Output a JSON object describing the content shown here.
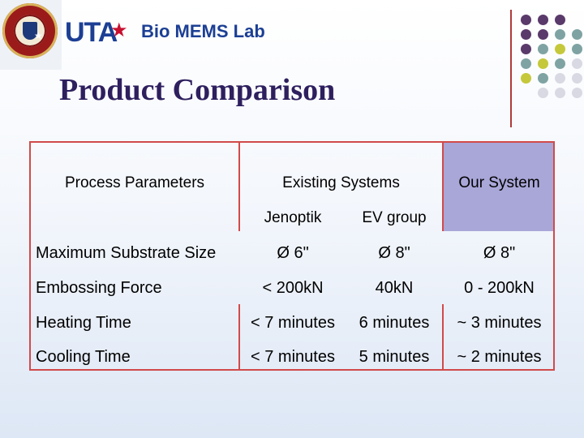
{
  "header": {
    "logo_text": "UTA",
    "lab_name": "Bio MEMS Lab",
    "title": "Product Comparison"
  },
  "colors": {
    "accent_line": "#b03a3a",
    "table_border": "#d24a4a",
    "our_system_bg": "#a9a6d8",
    "dot_purple": "#5a3a6a",
    "dot_teal": "#7fa3a3",
    "dot_olive": "#c5c83a",
    "dot_light": "#d9d9e3",
    "title_color": "#2e1f5e"
  },
  "table": {
    "col_process": "Process Parameters",
    "col_existing": "Existing Systems",
    "col_ours": "Our System",
    "sub_jenoptik": "Jenoptik",
    "sub_ev": "EV group",
    "rows": [
      {
        "param": "Maximum Substrate Size",
        "jenoptik": "Ø 6\"",
        "ev": "Ø 8\"",
        "ours": "Ø 8\""
      },
      {
        "param": "Embossing Force",
        "jenoptik": "< 200kN",
        "ev": "40kN",
        "ours": "0 - 200kN"
      },
      {
        "param": "Heating Time",
        "jenoptik": "< 7 minutes",
        "ev": "6 minutes",
        "ours": "~ 3 minutes"
      },
      {
        "param": "Cooling Time",
        "jenoptik": "< 7 minutes",
        "ev": "5 minutes",
        "ours": "~ 2 minutes"
      }
    ]
  },
  "decor": {
    "seal_icon": "university-seal-icon",
    "star_icon": "star-icon",
    "dots_icon": "dot-grid-decoration"
  }
}
